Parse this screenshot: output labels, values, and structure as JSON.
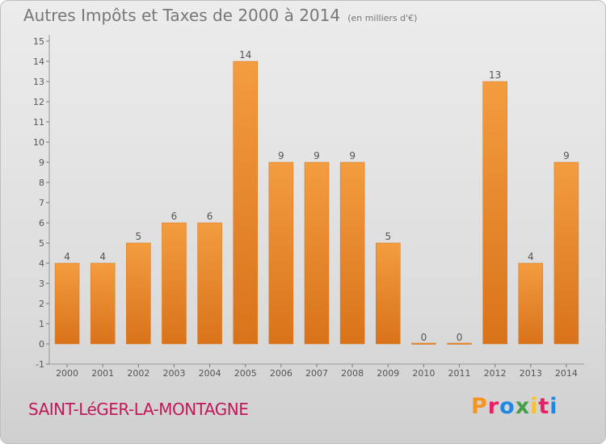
{
  "header": {
    "title": "Autres Impôts et Taxes de 2000 à 2014",
    "subtitle": "(en milliers d'€)"
  },
  "footer": {
    "commune": "SAINT-LéGER-LA-MONTAGNE",
    "logo_text": "Proxiti",
    "logo_colors": [
      "#f7941d",
      "#e91e63",
      "#1e88e5",
      "#43a047",
      "#fbc02d",
      "#e91e63",
      "#1e88e5"
    ]
  },
  "chart_data": {
    "type": "bar",
    "title": "Autres Impôts et Taxes de 2000 à 2014",
    "subtitle": "(en milliers d'€)",
    "categories": [
      "2000",
      "2001",
      "2002",
      "2003",
      "2004",
      "2005",
      "2006",
      "2007",
      "2008",
      "2009",
      "2010",
      "2011",
      "2012",
      "2013",
      "2014"
    ],
    "values": [
      4,
      4,
      5,
      6,
      6,
      14,
      9,
      9,
      9,
      5,
      0,
      0,
      13,
      4,
      9
    ],
    "data_labels": [
      "4",
      "4",
      "5",
      "6",
      "6",
      "14",
      "9",
      "9",
      "9",
      "5",
      "0",
      "0",
      "13",
      "4",
      "9"
    ],
    "yticks": [
      -1,
      0,
      1,
      2,
      3,
      4,
      5,
      6,
      7,
      8,
      9,
      10,
      11,
      12,
      13,
      14,
      15
    ],
    "ylim": [
      -1,
      15
    ],
    "bar_color": "#f39c40",
    "bar_color_dark": "#d9731a",
    "grid": false,
    "legend": "none"
  }
}
